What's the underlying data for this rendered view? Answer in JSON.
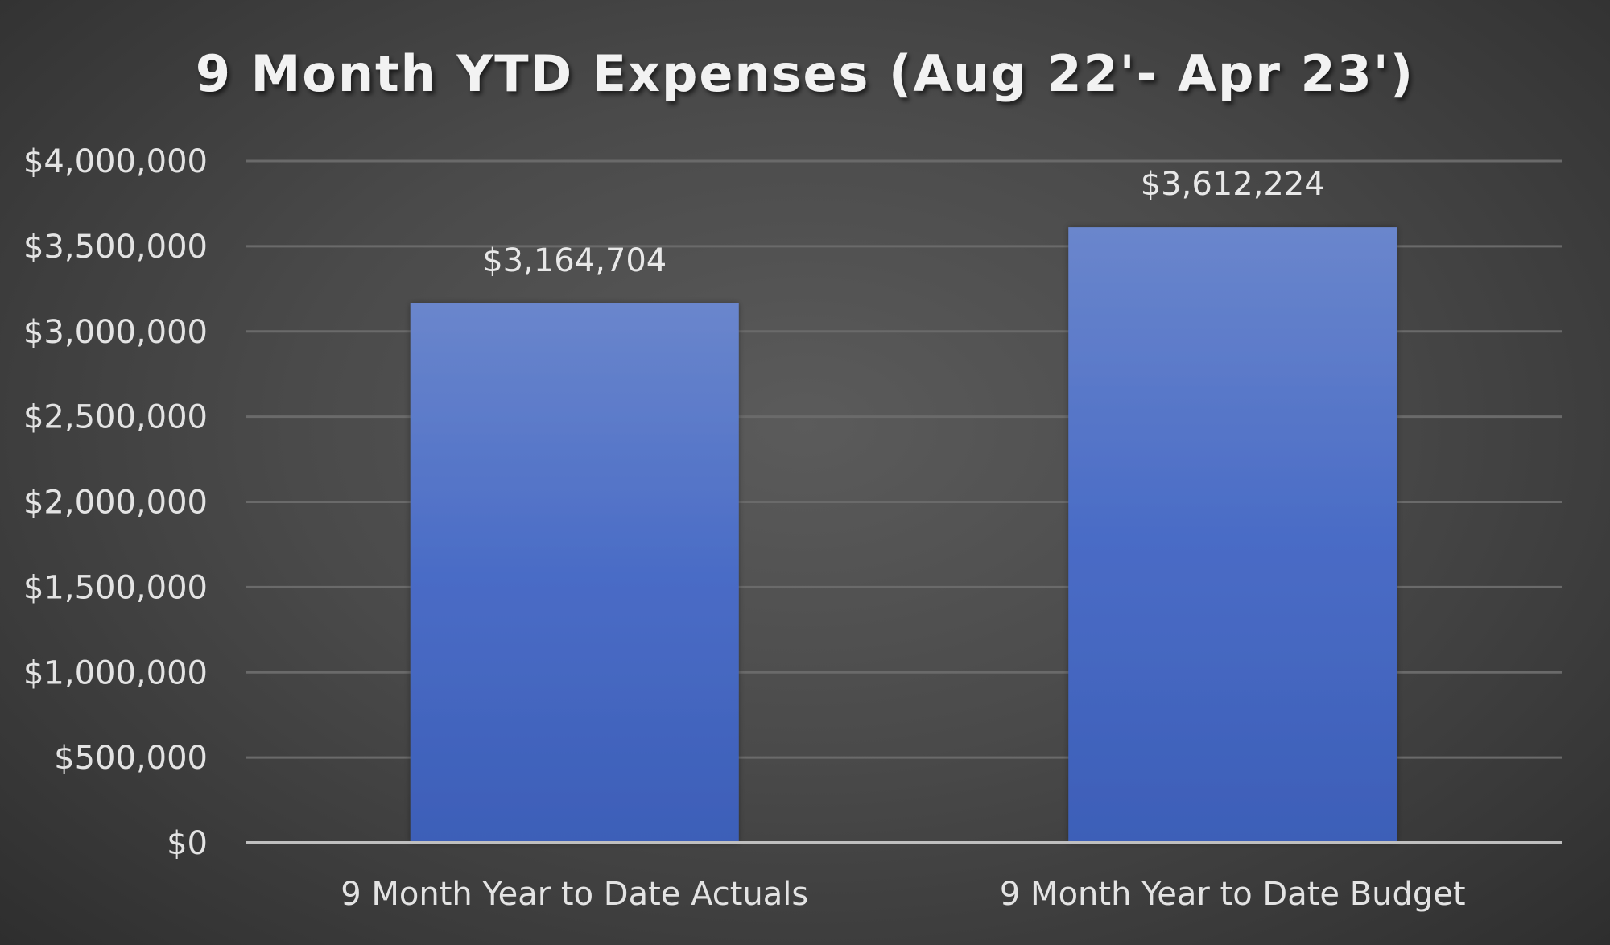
{
  "chart_data": {
    "type": "bar",
    "title": "9 Month YTD Expenses (Aug 22'- Apr 23')",
    "categories": [
      "9 Month Year to Date Actuals",
      "9 Month Year to Date Budget"
    ],
    "values": [
      3164704,
      3612224
    ],
    "data_labels": [
      "$3,164,704",
      "$3,612,224"
    ],
    "ylim": [
      0,
      4000000
    ],
    "y_ticks": [
      0,
      500000,
      1000000,
      1500000,
      2000000,
      2500000,
      3000000,
      3500000,
      4000000
    ],
    "y_tick_labels": [
      "$0",
      "$500,000",
      "$1,000,000",
      "$1,500,000",
      "$2,000,000",
      "$2,500,000",
      "$3,000,000",
      "$3,500,000",
      "$4,000,000"
    ],
    "grid": true,
    "legend": "none",
    "colors": {
      "bar_top": "#6a86cc",
      "bar_bottom": "#3d5fb8"
    }
  }
}
